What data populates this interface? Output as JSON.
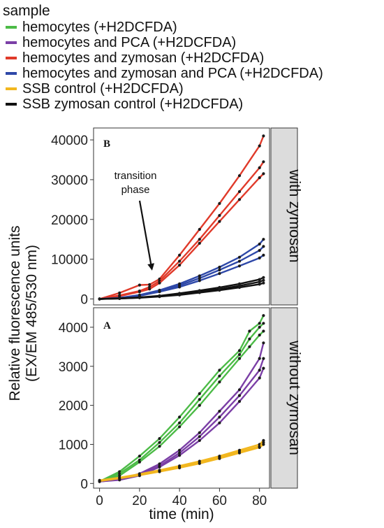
{
  "legend": {
    "title": "sample",
    "items": [
      {
        "label": "hemocytes (+H2DCFDA)",
        "color": "#4cbb47"
      },
      {
        "label": "hemocytes and PCA (+H2DCFDA)",
        "color": "#7b3fa6"
      },
      {
        "label": "hemocytes and zymosan (+H2DCFDA)",
        "color": "#e03a2a"
      },
      {
        "label": "hemocytes and zymosan and PCA (+H2DCFDA)",
        "color": "#2e48a8"
      },
      {
        "label": "SSB control (+H2DCFDA)",
        "color": "#f2b71f"
      },
      {
        "label": "SSB zymosan control (+H2DCFDA)",
        "color": "#111111"
      }
    ]
  },
  "annotation": {
    "line1": "transition",
    "line2": "phase"
  },
  "axes": {
    "ylabel_line1": "Relative fluorescence units",
    "ylabel_line2": "(EX/EM 485/530 nm)",
    "xlabel": "time (min)"
  },
  "chart_data": [
    {
      "type": "line",
      "panel": "B",
      "strip_label": "with zymosan",
      "xlim": [
        -3,
        85
      ],
      "ylim": [
        -1500,
        43000
      ],
      "x_ticks": [
        0,
        20,
        40,
        60,
        80
      ],
      "y_ticks": [
        0,
        10000,
        20000,
        30000,
        40000
      ],
      "y_tick_labels": [
        "0",
        "10000",
        "20000",
        "30000",
        "40000"
      ],
      "grid": false,
      "series": [
        {
          "sample": 2,
          "x": [
            0,
            10,
            20,
            25,
            30,
            40,
            50,
            60,
            70,
            80,
            82
          ],
          "y": [
            0,
            1500,
            3500,
            3600,
            5000,
            11000,
            17500,
            24000,
            31000,
            38500,
            41000
          ]
        },
        {
          "sample": 2,
          "x": [
            0,
            10,
            20,
            25,
            30,
            40,
            50,
            60,
            70,
            80,
            82
          ],
          "y": [
            0,
            900,
            2000,
            3000,
            4500,
            9500,
            15000,
            21000,
            27000,
            33000,
            34500
          ]
        },
        {
          "sample": 2,
          "x": [
            0,
            10,
            20,
            25,
            30,
            40,
            50,
            60,
            70,
            80,
            82
          ],
          "y": [
            0,
            700,
            1800,
            2500,
            4000,
            8500,
            14000,
            19500,
            25000,
            30500,
            31500
          ]
        },
        {
          "sample": 3,
          "x": [
            0,
            10,
            20,
            30,
            40,
            50,
            60,
            70,
            80,
            82
          ],
          "y": [
            0,
            300,
            1000,
            2200,
            3800,
            5800,
            8000,
            10500,
            13800,
            15000
          ]
        },
        {
          "sample": 3,
          "x": [
            0,
            10,
            20,
            30,
            40,
            50,
            60,
            70,
            80,
            82
          ],
          "y": [
            0,
            250,
            900,
            2000,
            3400,
            5200,
            7300,
            9500,
            12200,
            13200
          ]
        },
        {
          "sample": 3,
          "x": [
            0,
            10,
            20,
            30,
            40,
            50,
            60,
            70,
            80,
            82
          ],
          "y": [
            0,
            200,
            800,
            1800,
            3000,
            4600,
            6400,
            8300,
            10300,
            11000
          ]
        },
        {
          "sample": 5,
          "x": [
            0,
            10,
            20,
            30,
            40,
            50,
            60,
            70,
            80,
            82
          ],
          "y": [
            0,
            150,
            400,
            800,
            1400,
            2100,
            2900,
            3800,
            4900,
            5400
          ]
        },
        {
          "sample": 5,
          "x": [
            0,
            10,
            20,
            30,
            40,
            50,
            60,
            70,
            80,
            82
          ],
          "y": [
            0,
            120,
            350,
            700,
            1200,
            1800,
            2500,
            3300,
            4300,
            4700
          ]
        },
        {
          "sample": 5,
          "x": [
            0,
            10,
            20,
            30,
            40,
            50,
            60,
            70,
            80,
            82
          ],
          "y": [
            0,
            100,
            300,
            600,
            1000,
            1600,
            2200,
            2900,
            3700,
            4000
          ]
        }
      ]
    },
    {
      "type": "line",
      "panel": "A",
      "strip_label": "without zymosan",
      "xlim": [
        -3,
        85
      ],
      "ylim": [
        -120,
        4500
      ],
      "x_ticks": [
        0,
        20,
        40,
        60,
        80
      ],
      "x_tick_labels": [
        "0",
        "20",
        "40",
        "60",
        "80"
      ],
      "y_ticks": [
        0,
        1000,
        2000,
        3000,
        4000
      ],
      "y_tick_labels": [
        "0",
        "1000",
        "2000",
        "3000",
        "4000"
      ],
      "grid": false,
      "series": [
        {
          "sample": 0,
          "x": [
            0,
            10,
            20,
            30,
            40,
            50,
            60,
            70,
            75,
            80,
            82
          ],
          "y": [
            50,
            300,
            700,
            1150,
            1700,
            2300,
            2900,
            3400,
            3900,
            4100,
            4300
          ]
        },
        {
          "sample": 0,
          "x": [
            0,
            10,
            20,
            30,
            40,
            50,
            60,
            70,
            75,
            80,
            82
          ],
          "y": [
            50,
            250,
            600,
            1050,
            1550,
            2150,
            2750,
            3300,
            3700,
            4000,
            4100
          ]
        },
        {
          "sample": 0,
          "x": [
            0,
            10,
            20,
            30,
            40,
            50,
            60,
            70,
            75,
            80,
            82
          ],
          "y": [
            50,
            200,
            550,
            950,
            1450,
            2000,
            2600,
            3200,
            3500,
            3800,
            3900
          ]
        },
        {
          "sample": 1,
          "x": [
            0,
            10,
            20,
            30,
            40,
            50,
            60,
            70,
            80,
            82
          ],
          "y": [
            50,
            100,
            250,
            500,
            850,
            1300,
            1850,
            2400,
            3200,
            3600
          ]
        },
        {
          "sample": 1,
          "x": [
            0,
            10,
            20,
            30,
            40,
            50,
            60,
            70,
            80,
            82
          ],
          "y": [
            50,
            100,
            220,
            450,
            780,
            1200,
            1700,
            2250,
            2900,
            3200
          ]
        },
        {
          "sample": 1,
          "x": [
            0,
            10,
            20,
            30,
            40,
            50,
            60,
            70,
            80,
            82
          ],
          "y": [
            50,
            90,
            200,
            420,
            720,
            1100,
            1550,
            2100,
            2700,
            2950
          ]
        },
        {
          "sample": 4,
          "x": [
            0,
            10,
            20,
            30,
            40,
            50,
            60,
            70,
            80,
            82
          ],
          "y": [
            80,
            150,
            240,
            340,
            450,
            570,
            700,
            850,
            1000,
            1100
          ]
        },
        {
          "sample": 4,
          "x": [
            0,
            10,
            20,
            30,
            40,
            50,
            60,
            70,
            80,
            82
          ],
          "y": [
            70,
            140,
            225,
            320,
            425,
            540,
            670,
            810,
            950,
            1050
          ]
        },
        {
          "sample": 4,
          "x": [
            0,
            10,
            20,
            30,
            40,
            50,
            60,
            70,
            80,
            82
          ],
          "y": [
            60,
            130,
            210,
            300,
            400,
            510,
            640,
            780,
            920,
            1000
          ]
        }
      ]
    }
  ]
}
